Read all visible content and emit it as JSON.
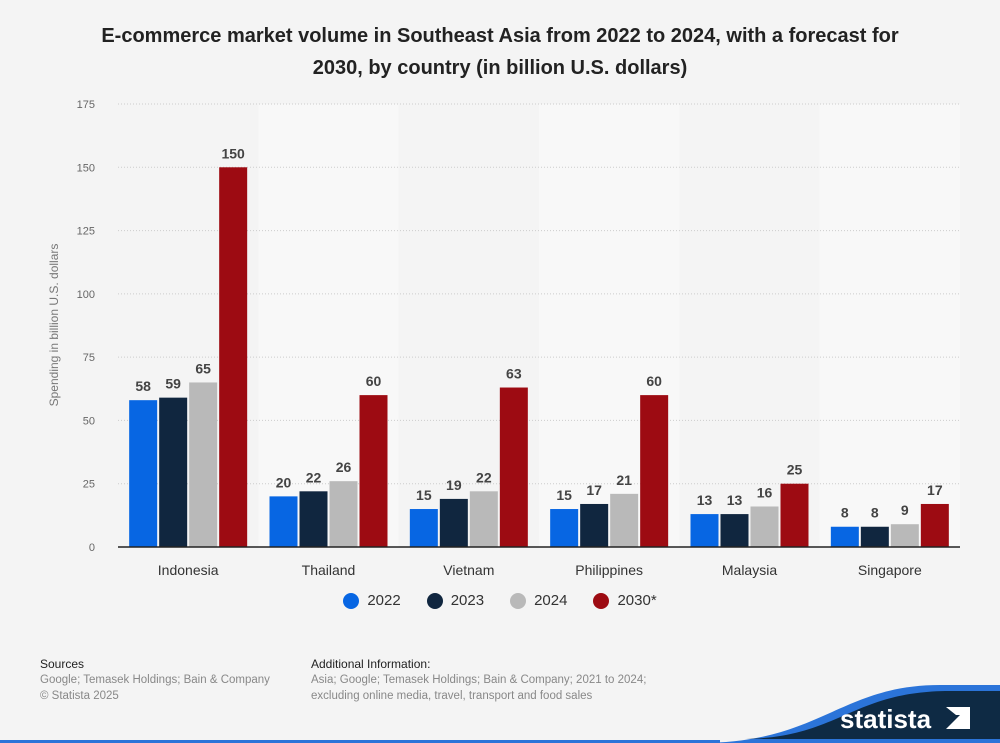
{
  "title": "E-commerce market volume in Southeast Asia from 2022 to 2024, with a forecast for 2030, by country (in billion U.S. dollars)",
  "chart_data": {
    "type": "bar",
    "title": "E-commerce market volume in Southeast Asia from 2022 to 2024, with a forecast for 2030, by country (in billion U.S. dollars)",
    "categories": [
      "Indonesia",
      "Thailand",
      "Vietnam",
      "Philippines",
      "Malaysia",
      "Singapore"
    ],
    "series": [
      {
        "name": "2022",
        "color": "#0766e3",
        "values": [
          58,
          20,
          15,
          15,
          13,
          8
        ]
      },
      {
        "name": "2023",
        "color": "#10263f",
        "values": [
          59,
          22,
          19,
          17,
          13,
          8
        ]
      },
      {
        "name": "2024",
        "color": "#b9b9b9",
        "values": [
          65,
          26,
          22,
          21,
          16,
          9
        ]
      },
      {
        "name": "2030*",
        "color": "#9d0b12",
        "values": [
          150,
          60,
          63,
          60,
          25,
          17
        ]
      }
    ],
    "xlabel": "",
    "ylabel": "Spending in billion U.S. dollars",
    "ylim": [
      0,
      175
    ],
    "yticks": [
      0,
      25,
      50,
      75,
      100,
      125,
      150,
      175
    ],
    "grid": true,
    "legend": "bottom"
  },
  "footer": {
    "sources_heading": "Sources",
    "sources": "Google; Temasek Holdings; Bain & Company",
    "copyright": "© Statista 2025",
    "info_heading": "Additional Information:",
    "info_line1": "Asia; Google; Temasek Holdings; Bain & Company; 2021 to 2024;",
    "info_line2": "excluding online media, travel, transport and food sales",
    "logo": "statista"
  }
}
